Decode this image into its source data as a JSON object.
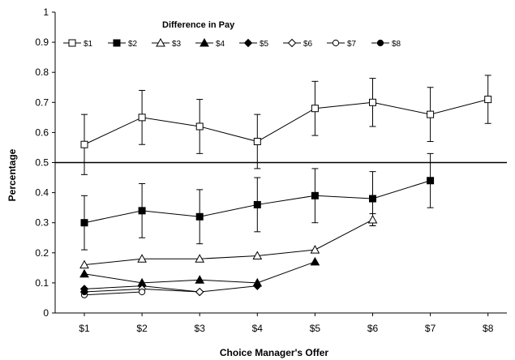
{
  "chart_data": {
    "type": "line",
    "title": "",
    "legend_title": "Difference in Pay",
    "legend_position": "top-left",
    "xlabel": "Choice Manager's Offer",
    "ylabel": "Percentage",
    "categories": [
      "$1",
      "$2",
      "$3",
      "$4",
      "$5",
      "$6",
      "$7",
      "$8"
    ],
    "ylim": [
      0,
      1
    ],
    "yticks": [
      "0",
      "0.1",
      "0.2",
      "0.3",
      "0.4",
      "0.5",
      "0.6",
      "0.7",
      "0.8",
      "0.9",
      "1"
    ],
    "reference_line": 0.5,
    "grid": false,
    "series": [
      {
        "name": "$1",
        "marker": "square-open",
        "values": [
          0.56,
          0.65,
          0.62,
          0.57,
          0.68,
          0.7,
          0.66,
          0.71
        ],
        "error": [
          0.1,
          0.09,
          0.09,
          0.09,
          0.09,
          0.08,
          0.09,
          0.08
        ]
      },
      {
        "name": "$2",
        "marker": "square-filled",
        "values": [
          0.3,
          0.34,
          0.32,
          0.36,
          0.39,
          0.38,
          0.44,
          null
        ],
        "error": [
          0.09,
          0.09,
          0.09,
          0.09,
          0.09,
          0.09,
          0.09,
          null
        ]
      },
      {
        "name": "$3",
        "marker": "triangle-open",
        "values": [
          0.16,
          0.18,
          0.18,
          0.19,
          0.21,
          0.31,
          null,
          null
        ],
        "error": [
          null,
          null,
          null,
          null,
          null,
          0.02,
          null,
          null
        ]
      },
      {
        "name": "$4",
        "marker": "triangle-filled",
        "values": [
          0.13,
          0.1,
          0.11,
          0.1,
          0.17,
          null,
          null,
          null
        ]
      },
      {
        "name": "$5",
        "marker": "diamond-filled",
        "values": [
          0.08,
          0.09,
          0.07,
          0.09,
          null,
          null,
          null,
          null
        ]
      },
      {
        "name": "$6",
        "marker": "diamond-open",
        "values": [
          0.07,
          0.08,
          0.07,
          null,
          null,
          null,
          null,
          null
        ]
      },
      {
        "name": "$7",
        "marker": "circle-open",
        "values": [
          0.06,
          0.07,
          null,
          null,
          null,
          null,
          null,
          null
        ]
      },
      {
        "name": "$8",
        "marker": "circle-filled",
        "values": [
          0.07,
          null,
          null,
          null,
          null,
          null,
          null,
          null
        ]
      }
    ]
  }
}
